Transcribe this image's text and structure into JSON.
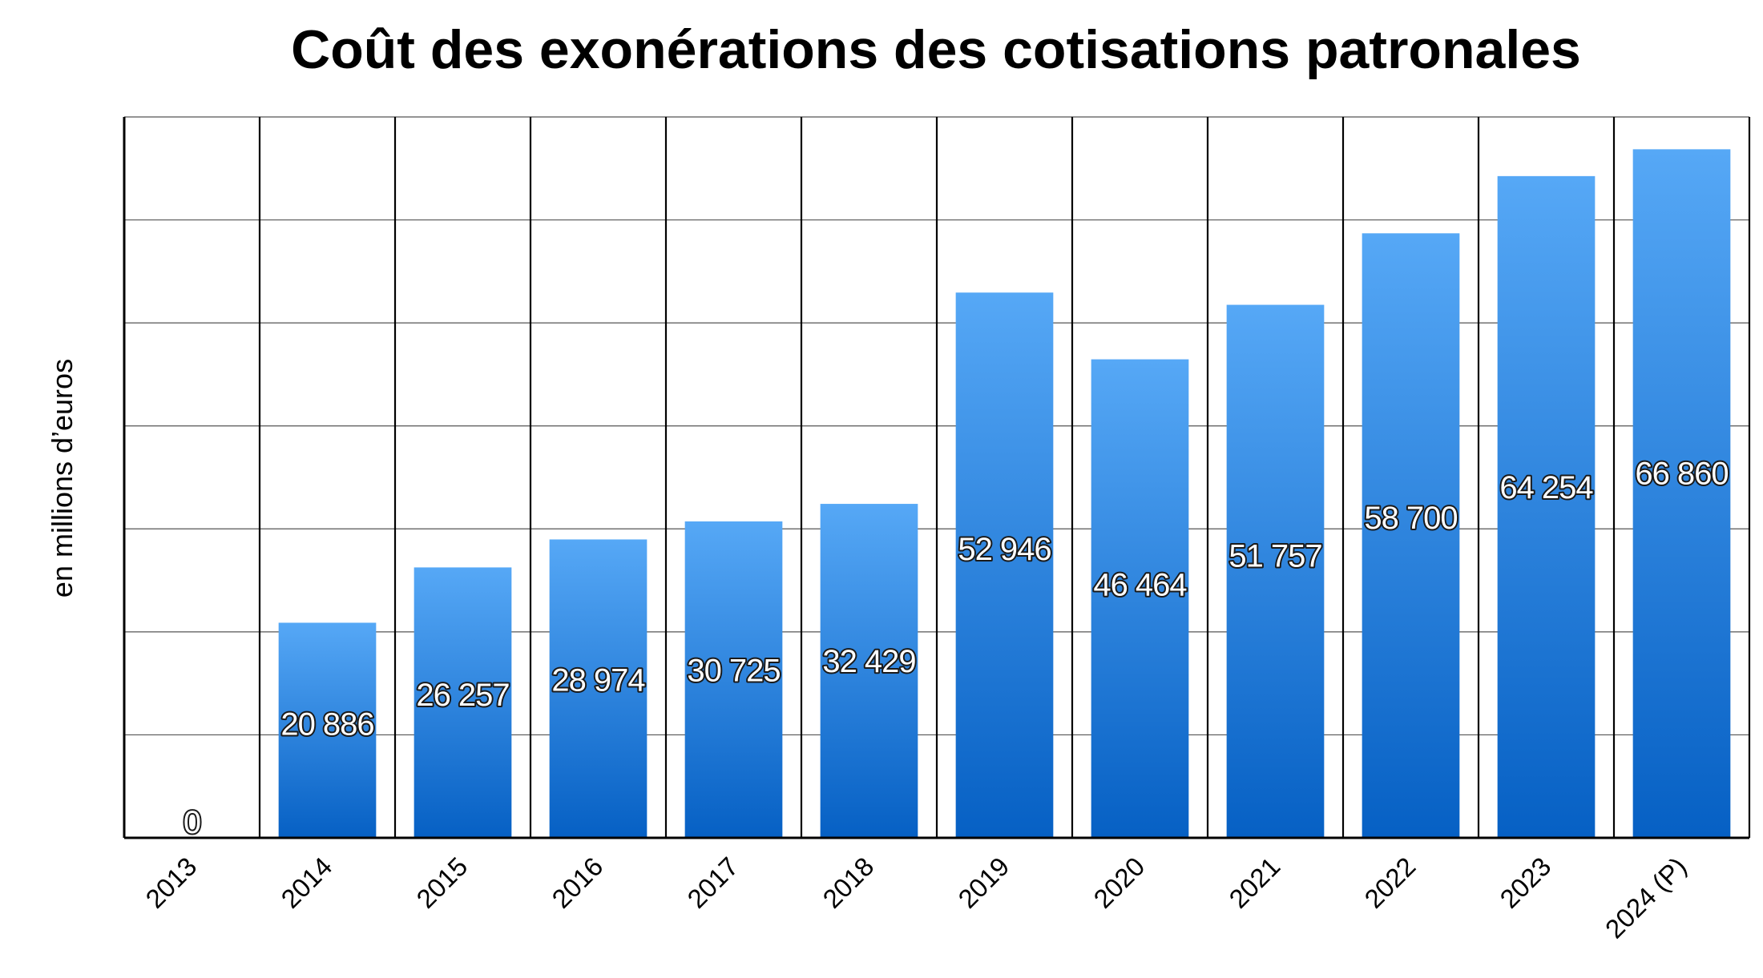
{
  "chart_data": {
    "type": "bar",
    "title": "Coût des exonérations des cotisations patronales",
    "xlabel": "",
    "ylabel": "en millions d’euros",
    "categories": [
      "2013",
      "2014",
      "2015",
      "2016",
      "2017",
      "2018",
      "2019",
      "2020",
      "2021",
      "2022",
      "2023",
      "2024 (P)"
    ],
    "values": [
      0,
      20886,
      26257,
      28974,
      30725,
      32429,
      52946,
      46464,
      51757,
      58700,
      64254,
      66860
    ],
    "value_labels": [
      "0",
      "20 886",
      "26 257",
      "28 974",
      "30 725",
      "32 429",
      "52 946",
      "46 464",
      "51 757",
      "58 700",
      "64 254",
      "66 860"
    ],
    "ylim": [
      0,
      70000
    ],
    "ytick_step": 10000,
    "y_tick_labels_visible": false,
    "grid": true,
    "legend": "none",
    "colors": {
      "bar_top": "#56a8f6",
      "bar_bottom": "#0660c4",
      "grid": "#555555",
      "axis": "#000000",
      "label_fill": "#ffffff",
      "label_outline": "#1a1a1a"
    }
  }
}
